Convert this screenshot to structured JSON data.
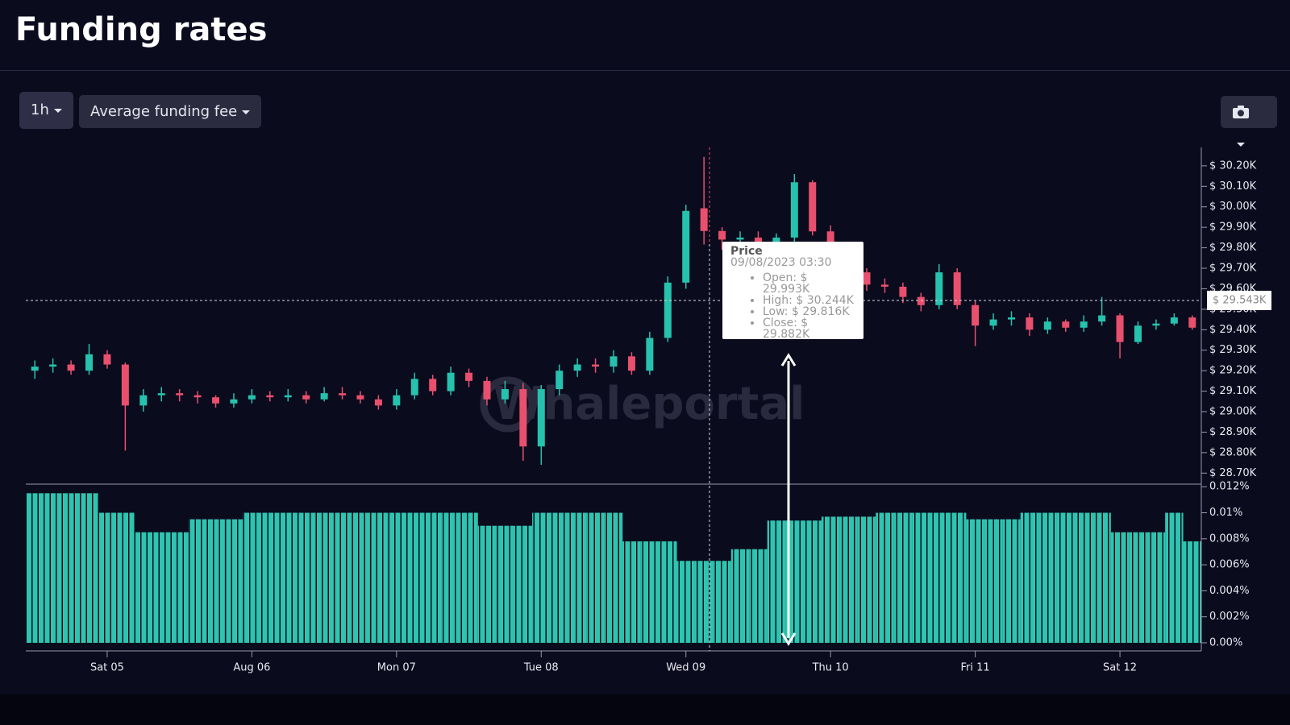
{
  "header": {
    "title": "Funding rates"
  },
  "controls": {
    "interval": "1h",
    "metric": "Average funding fee"
  },
  "watermark": "Whaleportal",
  "tooltip": {
    "title": "Price",
    "date": "09/08/2023 03:30",
    "items": [
      "Open: $ 29.993K",
      "High: $ 30.244K",
      "Low: $ 29.816K",
      "Close: $ 29.882K"
    ]
  },
  "chart_data": {
    "type": "candlestick",
    "categories": [
      null,
      null,
      null,
      null,
      "Sat 05",
      null,
      null,
      null,
      null,
      null,
      null,
      null,
      "Aug 06",
      null,
      null,
      null,
      null,
      null,
      null,
      null,
      "Mon 07",
      null,
      null,
      null,
      null,
      null,
      null,
      null,
      "Tue 08",
      null,
      null,
      null,
      null,
      null,
      null,
      null,
      "Wed 09",
      null,
      null,
      null,
      null,
      null,
      null,
      null,
      "Thu 10",
      null,
      null,
      null,
      null,
      null,
      null,
      null,
      "Fri 11",
      null,
      null,
      null,
      null,
      null,
      null,
      null,
      "Sat 12",
      null,
      null,
      null,
      null
    ],
    "open": [
      29200,
      29220,
      29230,
      29200,
      29280,
      29230,
      29030,
      29080,
      29090,
      29080,
      29070,
      29040,
      29060,
      29080,
      29070,
      29080,
      29060,
      29090,
      29080,
      29060,
      29030,
      29080,
      29160,
      29100,
      29190,
      29150,
      29060,
      29110,
      28830,
      29110,
      29200,
      29230,
      29220,
      29270,
      29200,
      29360,
      29630,
      29993,
      29882,
      29840,
      29850,
      29830,
      29850,
      30120,
      29880,
      29800,
      29680,
      29620,
      29610,
      29560,
      29520,
      29680,
      29520,
      29420,
      29450,
      29460,
      29400,
      29440,
      29410,
      29440,
      29470,
      29340,
      29420,
      29430,
      29460
    ],
    "high": [
      29250,
      29260,
      29250,
      29330,
      29300,
      29240,
      29110,
      29120,
      29110,
      29100,
      29080,
      29090,
      29110,
      29100,
      29110,
      29100,
      29120,
      29120,
      29100,
      29080,
      29110,
      29190,
      29180,
      29220,
      29210,
      29170,
      29150,
      29140,
      29130,
      29230,
      29260,
      29260,
      29300,
      29290,
      29390,
      29660,
      30010,
      30244,
      29900,
      29880,
      29880,
      29870,
      30160,
      30130,
      29910,
      29820,
      29700,
      29650,
      29630,
      29580,
      29720,
      29700,
      29540,
      29480,
      29490,
      29480,
      29460,
      29450,
      29470,
      29560,
      29480,
      29440,
      29450,
      29480,
      29470
    ],
    "low": [
      29160,
      29190,
      29180,
      29180,
      29210,
      28810,
      29000,
      29050,
      29050,
      29040,
      29020,
      29020,
      29040,
      29050,
      29050,
      29040,
      29050,
      29060,
      29040,
      29010,
      29010,
      29060,
      29080,
      29080,
      29120,
      29030,
      29040,
      28760,
      28740,
      29080,
      29170,
      29190,
      29190,
      29180,
      29180,
      29340,
      29600,
      29816,
      29790,
      29810,
      29800,
      29800,
      29820,
      29860,
      29770,
      29660,
      29590,
      29580,
      29530,
      29490,
      29500,
      29500,
      29320,
      29400,
      29420,
      29370,
      29380,
      29390,
      29390,
      29420,
      29260,
      29330,
      29400,
      29420,
      29400
    ],
    "close": [
      29220,
      29230,
      29200,
      29280,
      29230,
      29030,
      29080,
      29090,
      29080,
      29070,
      29040,
      29060,
      29080,
      29070,
      29080,
      29060,
      29090,
      29080,
      29060,
      29030,
      29080,
      29160,
      29100,
      29190,
      29150,
      29060,
      29110,
      28830,
      29110,
      29200,
      29230,
      29220,
      29270,
      29200,
      29360,
      29630,
      29980,
      29882,
      29840,
      29850,
      29830,
      29850,
      30120,
      29880,
      29800,
      29680,
      29620,
      29610,
      29560,
      29520,
      29680,
      29520,
      29420,
      29450,
      29460,
      29400,
      29440,
      29410,
      29440,
      29470,
      29340,
      29420,
      29430,
      29460,
      29410
    ],
    "up_color": "#26c2ad",
    "down_color": "#e8506e",
    "ylim": [
      28650,
      30290
    ],
    "yticks": [
      {
        "value": 28700,
        "label": "$ 28.70K"
      },
      {
        "value": 28800,
        "label": "$ 28.80K"
      },
      {
        "value": 28900,
        "label": "$ 28.90K"
      },
      {
        "value": 29000,
        "label": "$ 29.00K"
      },
      {
        "value": 29100,
        "label": "$ 29.10K"
      },
      {
        "value": 29200,
        "label": "$ 29.20K"
      },
      {
        "value": 29300,
        "label": "$ 29.30K"
      },
      {
        "value": 29400,
        "label": "$ 29.40K"
      },
      {
        "value": 29500,
        "label": "$ 29.50K"
      },
      {
        "value": 29600,
        "label": "$ 29.60K"
      },
      {
        "value": 29700,
        "label": "$ 29.70K"
      },
      {
        "value": 29800,
        "label": "$ 29.80K"
      },
      {
        "value": 29900,
        "label": "$ 29.90K"
      },
      {
        "value": 30000,
        "label": "$ 30.00K"
      },
      {
        "value": 30100,
        "label": "$ 30.10K"
      },
      {
        "value": 30200,
        "label": "$ 30.20K"
      }
    ],
    "last_price": {
      "value": 29543,
      "label": "$ 29.543K"
    },
    "funding": {
      "color": "#2ec4b0",
      "values": [
        0.0115,
        0.0115,
        0.0115,
        0.0115,
        0.01,
        0.01,
        0.0085,
        0.0085,
        0.0085,
        0.0095,
        0.0095,
        0.0095,
        0.01,
        0.01,
        0.01,
        0.01,
        0.01,
        0.01,
        0.01,
        0.01,
        0.01,
        0.01,
        0.01,
        0.01,
        0.01,
        0.009,
        0.009,
        0.009,
        0.01,
        0.01,
        0.01,
        0.01,
        0.01,
        0.0078,
        0.0078,
        0.0078,
        0.0063,
        0.0063,
        0.0063,
        0.0072,
        0.0072,
        0.0094,
        0.0094,
        0.0094,
        0.0097,
        0.0097,
        0.0097,
        0.01,
        0.01,
        0.01,
        0.01,
        0.01,
        0.0095,
        0.0095,
        0.0095,
        0.01,
        0.01,
        0.01,
        0.01,
        0.01,
        0.0085,
        0.0085,
        0.0085,
        0.01,
        0.0078
      ],
      "ylim": [
        0,
        0.0122
      ],
      "yticks": [
        {
          "value": 0,
          "label": "0.00%"
        },
        {
          "value": 0.002,
          "label": "0.002%"
        },
        {
          "value": 0.004,
          "label": "0.004%"
        },
        {
          "value": 0.006,
          "label": "0.006%"
        },
        {
          "value": 0.008,
          "label": "0.008%"
        },
        {
          "value": 0.01,
          "label": "0.01%"
        },
        {
          "value": 0.012,
          "label": "0.012%"
        }
      ]
    }
  }
}
